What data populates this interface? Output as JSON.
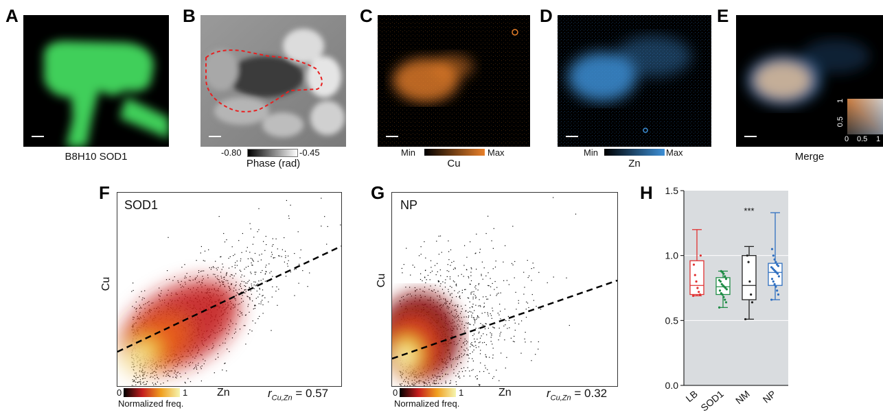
{
  "panels": {
    "A": {
      "label": "A",
      "caption": "B8H10 SOD1"
    },
    "B": {
      "label": "B",
      "colorbar_min": "-0.80",
      "colorbar_max": "-0.45",
      "caption": "Phase (rad)"
    },
    "C": {
      "label": "C",
      "colorbar_min": "Min",
      "colorbar_max": "Max",
      "caption": "Cu"
    },
    "D": {
      "label": "D",
      "colorbar_min": "Min",
      "colorbar_max": "Max",
      "caption": "Zn"
    },
    "E": {
      "label": "E",
      "caption": "Merge",
      "inset_ticks_x": [
        "0",
        "0.5",
        "1"
      ],
      "inset_ticks_y": [
        "0.5",
        "1"
      ]
    },
    "F": {
      "label": "F",
      "title": "SOD1",
      "ylabel": "Cu",
      "xlabel": "Zn",
      "colorbar_min": "0",
      "colorbar_max": "1",
      "colorbar_label": "Normalized freq.",
      "r_value": "= 0.57",
      "r_symbol": "r",
      "r_sub": "Cu,Zn"
    },
    "G": {
      "label": "G",
      "title": "NP",
      "ylabel": "Cu",
      "xlabel": "Zn",
      "colorbar_min": "0",
      "colorbar_max": "1",
      "colorbar_label": "Normalized freq.",
      "r_value": "= 0.32",
      "r_symbol": "r",
      "r_sub": "Cu,Zn"
    },
    "H": {
      "label": "H",
      "significance": "***"
    }
  },
  "colors": {
    "cu": "#e8802a",
    "zn": "#3d8fd6",
    "lb": "#e03030",
    "sod1": "#1e8c45",
    "nm": "#222222",
    "np": "#2f6fc0",
    "green": "#3fcf5a"
  },
  "chart_data": {
    "type": "box",
    "categories": [
      "LB",
      "SOD1",
      "NM",
      "NP"
    ],
    "ylim": [
      0.0,
      1.5
    ],
    "yticks": [
      "0.0",
      "0.5",
      "1.0",
      "1.5"
    ],
    "grid": true,
    "boxes": [
      {
        "name": "LB",
        "min": 0.69,
        "q1": 0.7,
        "median": 0.77,
        "q3": 0.96,
        "max": 1.2,
        "points": [
          0.69,
          0.7,
          0.72,
          0.75,
          0.8,
          0.85,
          0.93,
          1.0
        ]
      },
      {
        "name": "SOD1",
        "min": 0.6,
        "q1": 0.7,
        "median": 0.76,
        "q3": 0.83,
        "max": 0.88,
        "points": [
          0.6,
          0.64,
          0.66,
          0.68,
          0.7,
          0.71,
          0.73,
          0.74,
          0.75,
          0.76,
          0.77,
          0.78,
          0.8,
          0.81,
          0.82,
          0.84,
          0.86,
          0.87,
          0.88
        ]
      },
      {
        "name": "NM",
        "min": 0.51,
        "q1": 0.66,
        "median": 0.77,
        "q3": 1.0,
        "max": 1.07,
        "points": [
          0.51,
          0.64,
          0.7,
          0.8,
          0.95,
          1.0
        ]
      },
      {
        "name": "NP",
        "min": 0.66,
        "q1": 0.77,
        "median": 0.87,
        "q3": 0.94,
        "max": 1.33,
        "points": [
          0.66,
          0.7,
          0.73,
          0.76,
          0.78,
          0.8,
          0.82,
          0.84,
          0.86,
          0.87,
          0.88,
          0.89,
          0.9,
          0.91,
          0.92,
          0.93,
          0.95,
          0.97,
          1.0,
          1.05
        ]
      }
    ]
  }
}
